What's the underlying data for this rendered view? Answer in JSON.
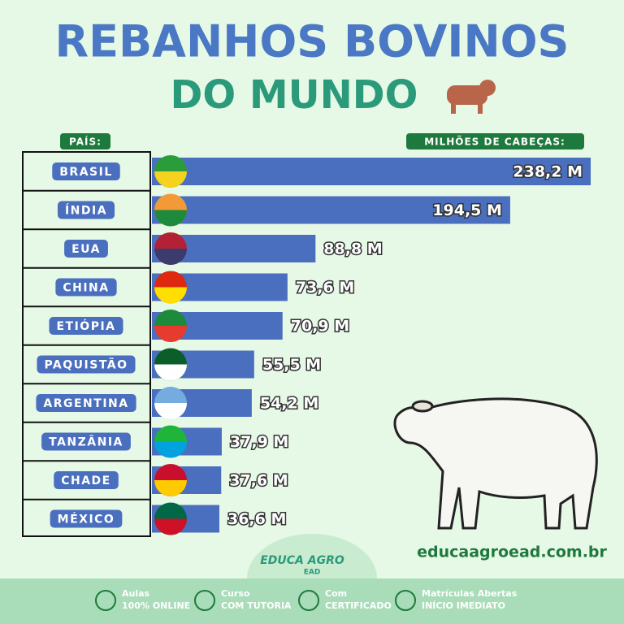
{
  "chart_data": {
    "type": "bar",
    "orientation": "horizontal",
    "title": "REBANHOS BOVINOS",
    "subtitle": "DO MUNDO",
    "category_header": "PAÍS:",
    "value_header": "MILHÕES DE CABEÇAS:",
    "categories": [
      "BRASIL",
      "ÍNDIA",
      "EUA",
      "CHINA",
      "ETIÓPIA",
      "PAQUISTÃO",
      "ARGENTINA",
      "TANZÂNIA",
      "CHADE",
      "MÉXICO"
    ],
    "values": [
      238.2,
      194.5,
      88.8,
      73.6,
      70.9,
      55.5,
      54.2,
      37.9,
      37.6,
      36.6
    ],
    "value_labels": [
      "238,2 M",
      "194,5 M",
      "88,8 M",
      "73,6 M",
      "70,9 M",
      "55,5 M",
      "54,2 M",
      "37,9 M",
      "37,6 M",
      "36,6 M"
    ],
    "color": "#4a6fbf"
  },
  "website": "educaagroead.com.br",
  "logo": {
    "name": "EDUCA AGRO",
    "sub": "EAD"
  },
  "features": [
    {
      "title": "Aulas",
      "subtitle": "100% ONLINE"
    },
    {
      "title": "Curso",
      "subtitle": "COM TUTORIA"
    },
    {
      "title": "Com",
      "subtitle": "CERTIFICADO"
    },
    {
      "title": "Matrículas Abertas",
      "subtitle": "INÍCIO IMEDIATO"
    }
  ]
}
